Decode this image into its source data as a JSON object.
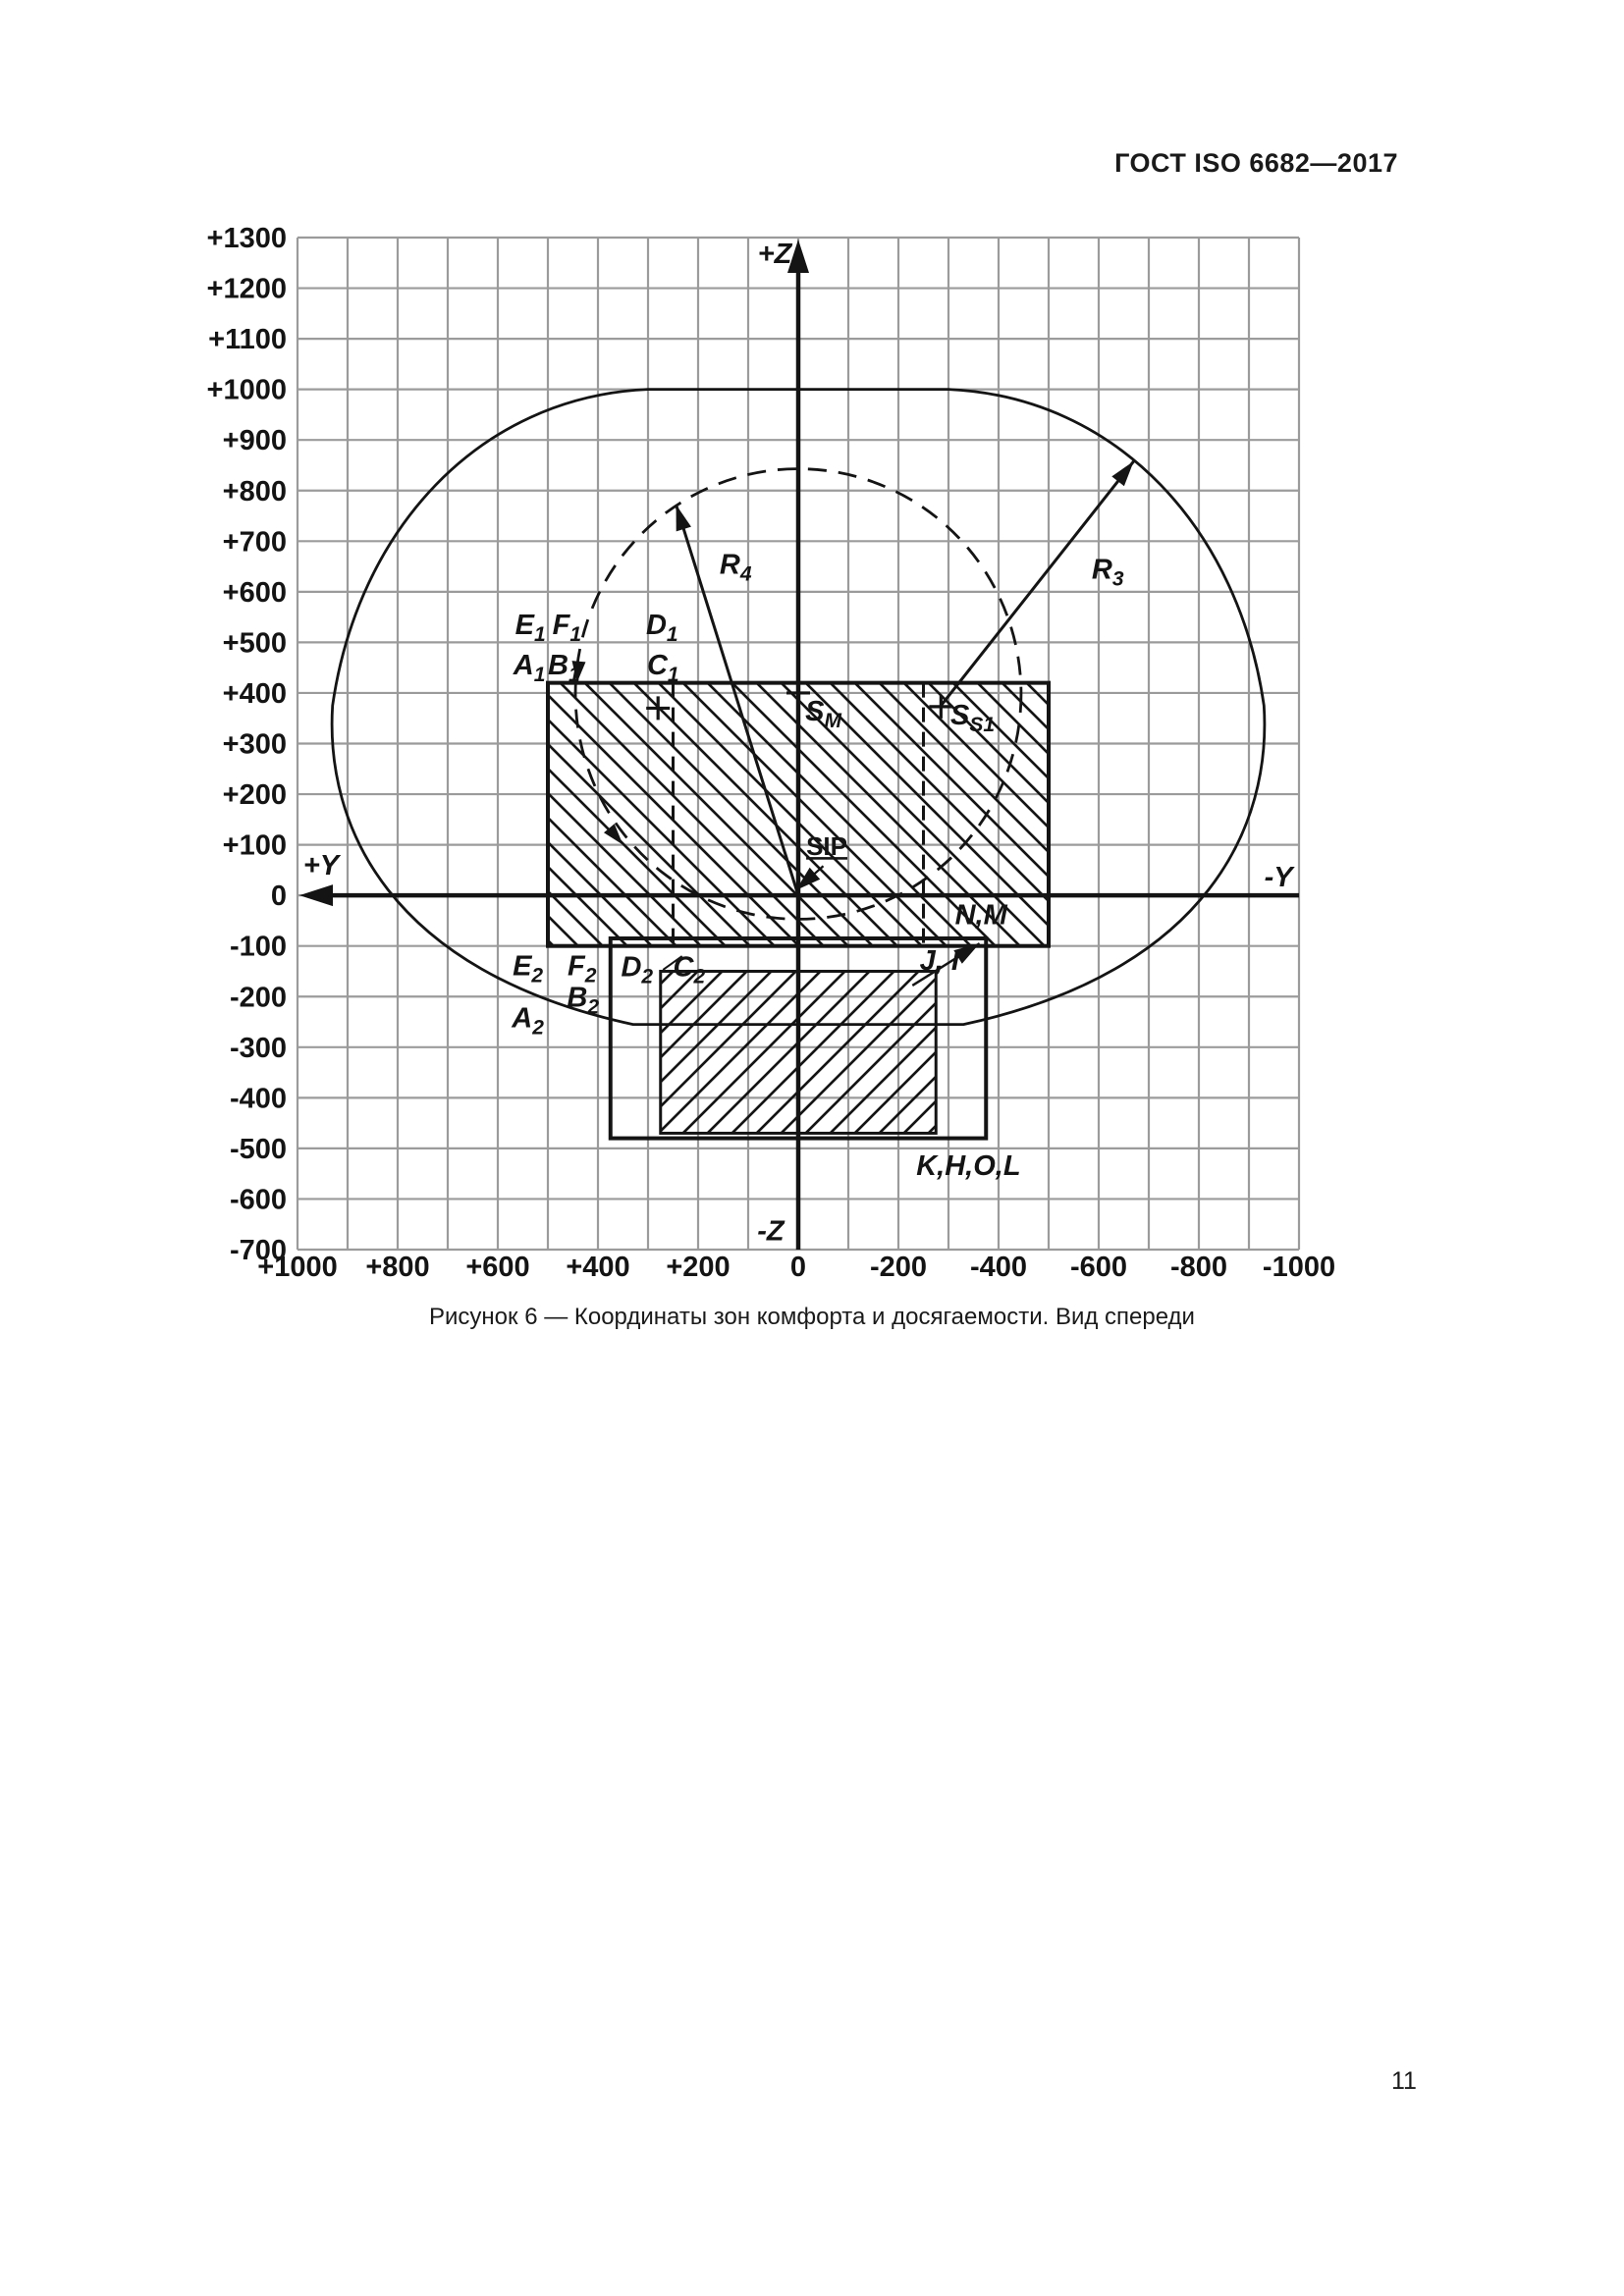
{
  "page": {
    "header": "ГОСТ ISO 6682—2017",
    "caption": "Рисунок 6 — Координаты зон комфорта и досягаемости. Вид спереди",
    "page_number": "11"
  },
  "chart_data": {
    "type": "diagram",
    "title": "Координаты зон комфорта и досягаемости. Вид спереди",
    "grid": {
      "step": 100,
      "color": "#9b9b9b",
      "on": true
    },
    "plot": {
      "x_left": 303,
      "x_right": 1323,
      "y_top": 242,
      "y_bottom": 1273,
      "y_range": [
        1000,
        -1000
      ],
      "z_range": [
        1300,
        -700
      ]
    },
    "axes": {
      "horizontal": {
        "name": "Y",
        "positive_label": "+Y",
        "negative_label": "-Y",
        "ticks": [
          {
            "v": 1000,
            "label": "+1000"
          },
          {
            "v": 800,
            "label": "+800"
          },
          {
            "v": 600,
            "label": "+600"
          },
          {
            "v": 400,
            "label": "+400"
          },
          {
            "v": 200,
            "label": "+200"
          },
          {
            "v": 0,
            "label": "0"
          },
          {
            "v": -200,
            "label": "-200"
          },
          {
            "v": -400,
            "label": "-400"
          },
          {
            "v": -600,
            "label": "-600"
          },
          {
            "v": -800,
            "label": "-800"
          },
          {
            "v": -1000,
            "label": "-1000"
          }
        ]
      },
      "vertical": {
        "name": "Z",
        "positive_label": "+Z",
        "negative_label": "-Z",
        "ticks": [
          {
            "v": 1300,
            "label": "+1300"
          },
          {
            "v": 1200,
            "label": "+1200"
          },
          {
            "v": 1100,
            "label": "+1100"
          },
          {
            "v": 1000,
            "label": "+1000"
          },
          {
            "v": 900,
            "label": "+900"
          },
          {
            "v": 800,
            "label": "+800"
          },
          {
            "v": 700,
            "label": "+700"
          },
          {
            "v": 600,
            "label": "+600"
          },
          {
            "v": 500,
            "label": "+500"
          },
          {
            "v": 400,
            "label": "+400"
          },
          {
            "v": 300,
            "label": "+300"
          },
          {
            "v": 200,
            "label": "+200"
          },
          {
            "v": 100,
            "label": "+100"
          },
          {
            "v": 0,
            "label": "0"
          },
          {
            "v": -100,
            "label": "-100"
          },
          {
            "v": -200,
            "label": "-200"
          },
          {
            "v": -300,
            "label": "-300"
          },
          {
            "v": -400,
            "label": "-400"
          },
          {
            "v": -500,
            "label": "-500"
          },
          {
            "v": -600,
            "label": "-600"
          },
          {
            "v": -700,
            "label": "-700"
          }
        ]
      }
    },
    "envelope": {
      "name": "reach-envelope-R3",
      "path": [
        [
          "M",
          300,
          1000
        ],
        [
          "L",
          -300,
          1000
        ],
        [
          "C",
          -640,
          985,
          -880,
          720,
          -930,
          375
        ],
        [
          "C",
          -945,
          140,
          -820,
          -150,
          -330,
          -255
        ],
        [
          "L",
          330,
          -255
        ],
        [
          "C",
          820,
          -150,
          945,
          140,
          930,
          375
        ],
        [
          "C",
          880,
          720,
          640,
          985,
          300,
          1000
        ],
        [
          "Z"
        ]
      ]
    },
    "reach_circle": {
      "name": "reach-circle-R4",
      "cy": 0,
      "cz": 398,
      "r": 445,
      "dashed": true
    },
    "zones": [
      {
        "name": "comfort-zone-upper",
        "y1": 500,
        "z1": 420,
        "y2": -500,
        "z2": -100,
        "hatch": "back",
        "stroke": 4
      },
      {
        "name": "lower-zone-outline",
        "y1": 375,
        "z1": -85,
        "y2": -375,
        "z2": -480,
        "hatch": null,
        "stroke": 4
      },
      {
        "name": "comfort-zone-lower",
        "y1": 275,
        "z1": -150,
        "y2": -275,
        "z2": -470,
        "hatch": "fwd",
        "stroke": 3
      }
    ],
    "dividers": [
      {
        "y": 250,
        "z1": 420,
        "z2": -100,
        "dashed": true
      },
      {
        "y": -250,
        "z1": 420,
        "z2": -100,
        "dashed": true
      }
    ],
    "seat_points": [
      {
        "id": "S_M",
        "y": 0,
        "z": 400
      },
      {
        "id": "S_S",
        "y": 280,
        "z": 370
      },
      {
        "id": "S_S1",
        "y": -285,
        "z": 373
      }
    ],
    "arrows": [
      {
        "id": "R4",
        "from": [
          0,
          0
        ],
        "to": [
          244,
          772
        ],
        "w": 3
      },
      {
        "id": "R3",
        "from": [
          -285,
          375
        ],
        "to": [
          -670,
          858
        ],
        "w": 3
      },
      {
        "id": "SIP-leader",
        "from": [
          -50,
          58
        ],
        "to": [
          5,
          10
        ],
        "w": 2.2
      },
      {
        "id": "JI-leader",
        "from": [
          -228,
          -178
        ],
        "to": [
          -362,
          -95
        ],
        "w": 2.5
      }
    ],
    "ticks_on_circle": [
      {
        "y": 442,
        "z": 420,
        "rot": 95
      },
      {
        "y": 350,
        "z": 100,
        "rot": 50
      }
    ],
    "leader_lines": [
      {
        "from": [
          232,
          -120
        ],
        "to": [
          270,
          -147
        ]
      }
    ],
    "labels": [
      {
        "t": "+Z",
        "y": 47,
        "z": 1269,
        "cls": "ax"
      },
      {
        "t": "-Z",
        "y": 55,
        "z": -662,
        "cls": "ax"
      },
      {
        "t": "+Y",
        "y": 953,
        "z": 60,
        "cls": "ax"
      },
      {
        "t": "-Y",
        "y": -959,
        "z": 37,
        "cls": "ax"
      },
      {
        "t": "R",
        "s": "4",
        "y": 125,
        "z": 655,
        "cls": "z"
      },
      {
        "t": "R",
        "s": "3",
        "y": -618,
        "z": 645,
        "cls": "z"
      },
      {
        "t": "E",
        "s": "1",
        "y": 535,
        "z": 536,
        "cls": "z"
      },
      {
        "t": "F",
        "s": "1",
        "y": 462,
        "z": 536,
        "cls": "z"
      },
      {
        "t": "D",
        "s": "1",
        "y": 272,
        "z": 536,
        "cls": "z"
      },
      {
        "t": "A",
        "s": "1",
        "y": 537,
        "z": 456,
        "cls": "z"
      },
      {
        "t": "B",
        "s": "1",
        "y": 468,
        "z": 456,
        "cls": "z"
      },
      {
        "t": "C",
        "s": "1",
        "y": 270,
        "z": 456,
        "cls": "z"
      },
      {
        "t": "S",
        "s": "M",
        "y": -14,
        "z": 365,
        "cls": "z",
        "anchor": "start"
      },
      {
        "t": "S",
        "s": "S1",
        "y": -304,
        "z": 357,
        "cls": "z",
        "anchor": "start"
      },
      {
        "t": "SIP",
        "y": -57,
        "z": 99,
        "cls": "sip"
      },
      {
        "t": "N,M",
        "y": -365,
        "z": -38,
        "cls": "z"
      },
      {
        "t": "J, I",
        "y": -282,
        "z": -128,
        "cls": "z"
      },
      {
        "t": "E",
        "s": "2",
        "y": 540,
        "z": -138,
        "cls": "z"
      },
      {
        "t": "F",
        "s": "2",
        "y": 432,
        "z": -138,
        "cls": "z"
      },
      {
        "t": "D",
        "s": "2",
        "y": 322,
        "z": -140,
        "cls": "z"
      },
      {
        "t": "C",
        "s": "2",
        "y": 218,
        "z": -140,
        "cls": "z"
      },
      {
        "t": "B",
        "s": "2",
        "y": 430,
        "z": -200,
        "cls": "z"
      },
      {
        "t": "A",
        "s": "2",
        "y": 540,
        "z": -241,
        "cls": "z"
      },
      {
        "t": "K,H,O,L",
        "y": -340,
        "z": -533,
        "cls": "z"
      }
    ]
  }
}
